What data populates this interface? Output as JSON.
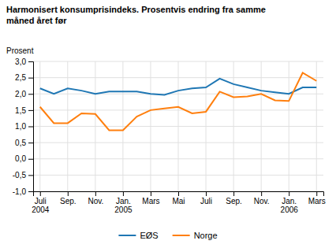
{
  "chart_data": {
    "type": "line",
    "title": "Harmonisert konsumprisindeks. Prosentvis endring fra samme\nmåned året før",
    "y_label": "Prosent",
    "categories": [
      "Juli\n2004",
      null,
      "Sep.",
      null,
      "Nov.",
      null,
      "Jan.\n2005",
      null,
      "Mars",
      null,
      "Mai",
      null,
      "Juli",
      null,
      "Sep.",
      null,
      "Nov.",
      null,
      "Jan.\n2006",
      null,
      "Mars"
    ],
    "series": [
      {
        "name": "EØS",
        "values": [
          2.17,
          2.0,
          2.17,
          2.1,
          2.0,
          2.07,
          2.07,
          2.07,
          2.0,
          1.97,
          2.1,
          2.17,
          2.2,
          2.47,
          2.3,
          2.2,
          2.1,
          2.05,
          2.0,
          2.2,
          2.2
        ]
      },
      {
        "name": "Norge",
        "values": [
          1.6,
          1.1,
          1.1,
          1.4,
          1.38,
          0.88,
          0.88,
          1.3,
          1.5,
          1.55,
          1.6,
          1.4,
          1.45,
          2.07,
          1.9,
          1.92,
          2.0,
          1.8,
          1.78,
          2.65,
          2.4
        ]
      }
    ],
    "ylim": [
      -1.0,
      3.0
    ],
    "yticks": [
      {
        "value": -1.0,
        "label": "-1,0"
      },
      {
        "value": -0.5,
        "label": "-0,5"
      },
      {
        "value": 0.0,
        "label": "0,0"
      },
      {
        "value": 0.5,
        "label": "0,5"
      },
      {
        "value": 1.0,
        "label": "1,0"
      },
      {
        "value": 1.5,
        "label": "1,5"
      },
      {
        "value": 2.0,
        "label": "2,0"
      },
      {
        "value": 2.5,
        "label": "2,5"
      },
      {
        "value": 3.0,
        "label": "3,0"
      }
    ],
    "grid": true,
    "legend": "bottom"
  }
}
